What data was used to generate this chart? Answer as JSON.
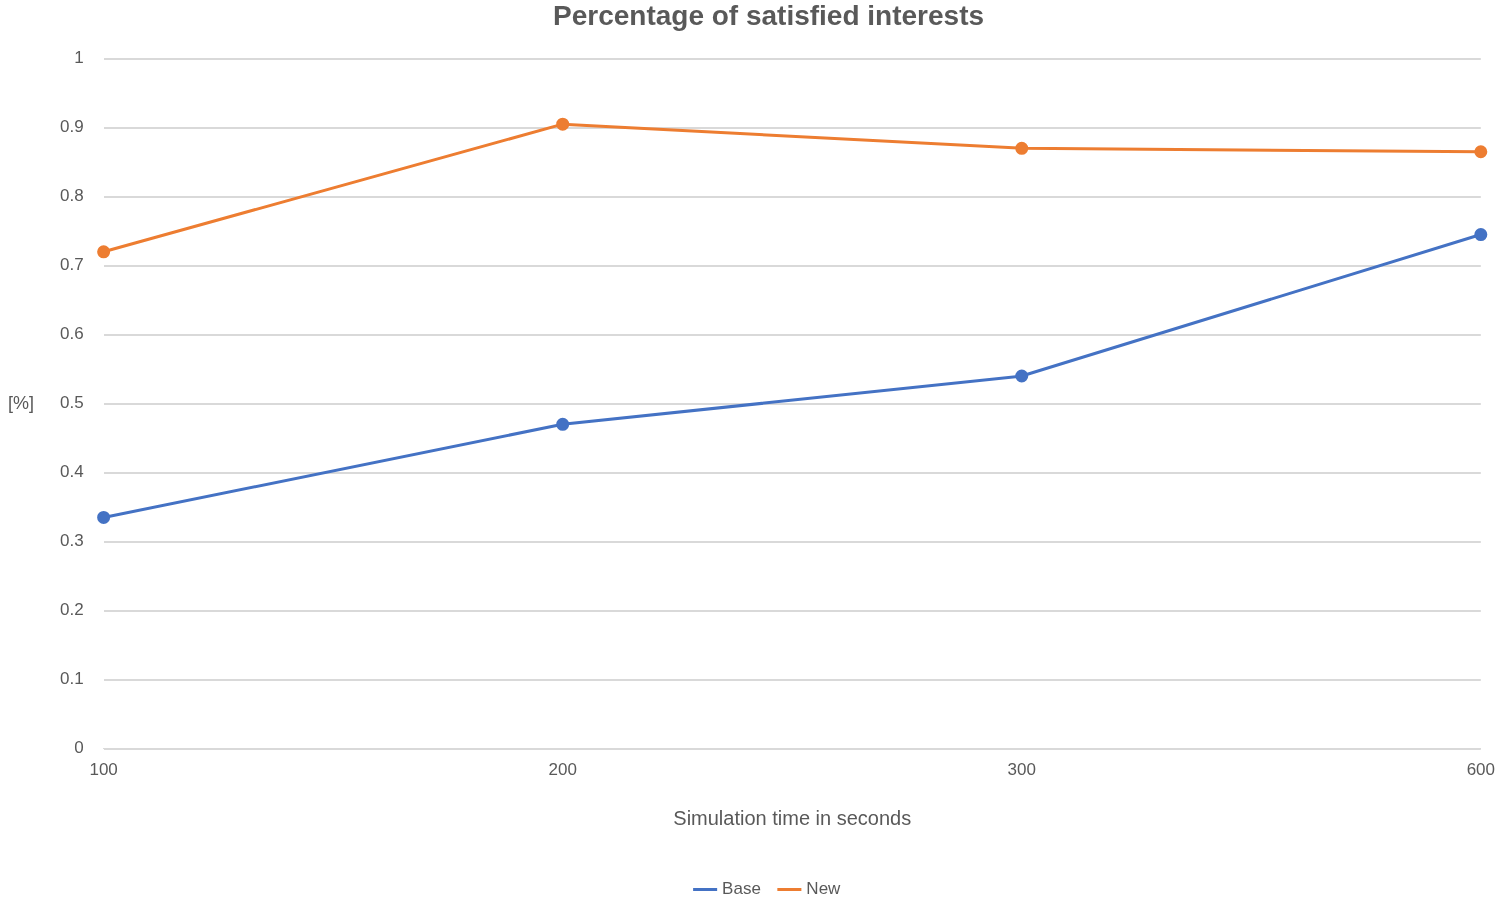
{
  "chart_data": {
    "type": "line",
    "title": "Percentage of satisfied interests",
    "xlabel": "Simulation time in seconds",
    "ylabel": "[%]",
    "categories": [
      "100",
      "200",
      "300",
      "600"
    ],
    "series": [
      {
        "name": "Base",
        "color": "#4472c4",
        "values": [
          0.335,
          0.47,
          0.54,
          0.745
        ]
      },
      {
        "name": "New",
        "color": "#ed7d31",
        "values": [
          0.72,
          0.905,
          0.87,
          0.865
        ]
      }
    ],
    "ylim": [
      0,
      1
    ],
    "yticks": [
      0,
      0.1,
      0.2,
      0.3,
      0.4,
      0.5,
      0.6,
      0.7,
      0.8,
      0.9,
      1
    ],
    "grid": "y",
    "legend": "bottom",
    "marker": "circle",
    "line_style": "solid"
  }
}
